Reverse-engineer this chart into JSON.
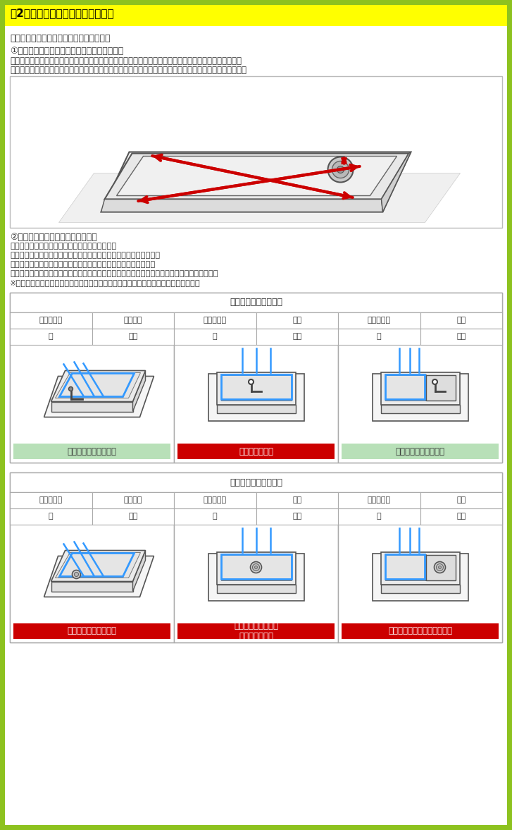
{
  "title": "【2：設置場所をご確認ください】",
  "title_bg": "#FFFF00",
  "green_border": "#8DC21F",
  "line1": "洗濯機を設置する場所をご確認ください。",
  "section1_title": "①防水フロア（防水パン）をご確認ください。",
  "section1_text1": "マンションやアパートには、下記のようなプラスチック製の防水フロアを使用している場合があります。",
  "section1_text2": "設置場所に防水フロアがあるか、また、ご購入の機種が防水フロア内に収まるか、内径をご確認ください。",
  "section2_title": "②排水口の位置をご確認ください。",
  "section2_lines": [
    "防水フロアにはさまざまなタイプがございます。",
    "排水口の位置等によっては別途部品が必要になる場合がございます。",
    "設置に必要な別途部品は予めお客様にてご用意をお願い致します。",
    "設置に必要な別途部品をご用意頂けていない場合には、設置が完了できない場合がございます。",
    "※商品開梱後の交換・返品はいたしかねます。必ず設置場所を事前にご確認ください。"
  ],
  "table1_title": "排水エルボがある場合",
  "table1_cols": [
    {
      "row1": [
        "排水口位置",
        "真下以外"
      ],
      "row2": [
        "台",
        "なし"
      ],
      "img_type": "angled_elbow",
      "result": "そのまま設置できます",
      "result_color": "#b8e0b8",
      "result_text_color": "#333333"
    },
    {
      "row1": [
        "排水口位置",
        "真下"
      ],
      "row2": [
        "台",
        "なし"
      ],
      "img_type": "straight_elbow",
      "result": "足台が必要です",
      "result_color": "#CC0000",
      "result_text_color": "#FFFFFF"
    },
    {
      "row1": [
        "排水口位置",
        "真下"
      ],
      "row2": [
        "台",
        "あり"
      ],
      "img_type": "straight_elbow_stand",
      "result": "そのまま設置できます",
      "result_color": "#b8e0b8",
      "result_text_color": "#333333"
    }
  ],
  "table2_title": "排水エルボがない場合",
  "table2_cols": [
    {
      "row1": [
        "排水口位置",
        "真下以外"
      ],
      "row2": [
        "台",
        "なし"
      ],
      "img_type": "angled_no_elbow",
      "result": "排水エルボが必要です",
      "result_color": "#CC0000",
      "result_text_color": "#FFFFFF"
    },
    {
      "row1": [
        "排水口位置",
        "真下"
      ],
      "row2": [
        "台",
        "なし"
      ],
      "img_type": "straight_no_elbow",
      "result": "真下排水ユニットと\n足台が必要です",
      "result_color": "#CC0000",
      "result_text_color": "#FFFFFF"
    },
    {
      "row1": [
        "排水口位置",
        "真下"
      ],
      "row2": [
        "台",
        "あり"
      ],
      "img_type": "straight_no_elbow_stand",
      "result": "真下排水ユニットが必要です",
      "result_color": "#CC0000",
      "result_text_color": "#FFFFFF"
    }
  ]
}
